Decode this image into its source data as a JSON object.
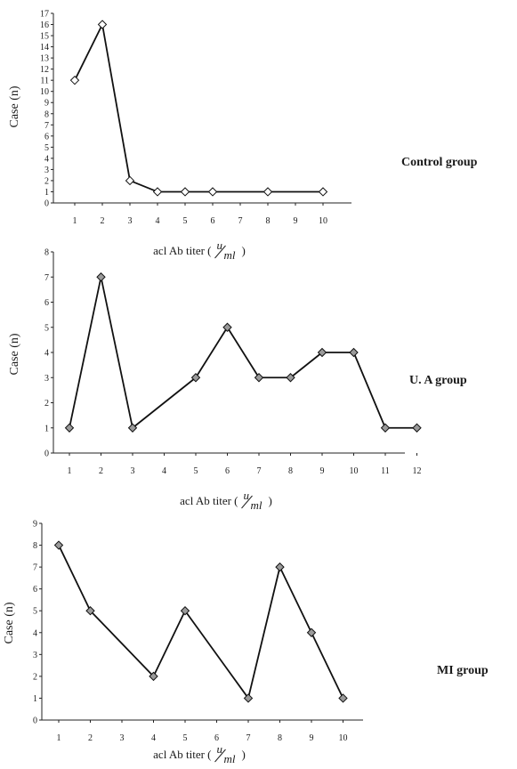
{
  "chart_data": [
    {
      "type": "line",
      "group_label": "Control group",
      "ylabel": "Case (n)",
      "xlabel": {
        "main": "acl  Ab titer (",
        "frac_num": "u",
        "frac_den": "ml",
        "close": ")"
      },
      "ylim": [
        0,
        17
      ],
      "yticks": [
        "0",
        "1",
        "2",
        "3",
        "4",
        "5",
        "6",
        "7",
        "8",
        "9",
        "10",
        "11",
        "12",
        "13",
        "14",
        "15",
        "16",
        "17"
      ],
      "categories": [
        "1",
        "2",
        "3",
        "4",
        "5",
        "6",
        "7",
        "8",
        "9",
        "10"
      ],
      "series": [
        {
          "values": [
            11,
            16,
            2,
            1,
            1,
            1,
            null,
            1,
            null,
            1
          ],
          "marker": "diamond-open"
        }
      ],
      "grid": false,
      "legend": "none"
    },
    {
      "type": "line",
      "group_label": "U. A group",
      "ylabel": "Case (n)",
      "xlabel": {
        "main": "acl  Ab titer (",
        "frac_num": "u",
        "frac_den": "ml",
        "close": ")"
      },
      "ylim": [
        0,
        8
      ],
      "yticks": [
        "0",
        "1",
        "2",
        "3",
        "4",
        "5",
        "6",
        "7",
        "8"
      ],
      "categories": [
        "1",
        "2",
        "3",
        "4",
        "5",
        "6",
        "7",
        "8",
        "9",
        "10",
        "11",
        "12"
      ],
      "series": [
        {
          "values": [
            1,
            7,
            1,
            null,
            3,
            5,
            3,
            3,
            4,
            4,
            1,
            1
          ],
          "marker": "diamond-grey"
        }
      ],
      "grid": false,
      "legend": "none"
    },
    {
      "type": "line",
      "group_label": "MI group",
      "ylabel": "Case (n)",
      "xlabel": {
        "main": "acl  Ab titer (",
        "frac_num": "u",
        "frac_den": "ml",
        "close": ")"
      },
      "ylim": [
        0,
        9
      ],
      "yticks": [
        "0",
        "1",
        "2",
        "3",
        "4",
        "5",
        "6",
        "7",
        "8",
        "9"
      ],
      "categories": [
        "1",
        "2",
        "3",
        "4",
        "5",
        "6",
        "7",
        "8",
        "9",
        "10"
      ],
      "series": [
        {
          "values": [
            8,
            5,
            null,
            2,
            5,
            null,
            1,
            7,
            4,
            1
          ],
          "marker": "diamond-grey"
        }
      ],
      "grid": false,
      "legend": "none"
    }
  ]
}
